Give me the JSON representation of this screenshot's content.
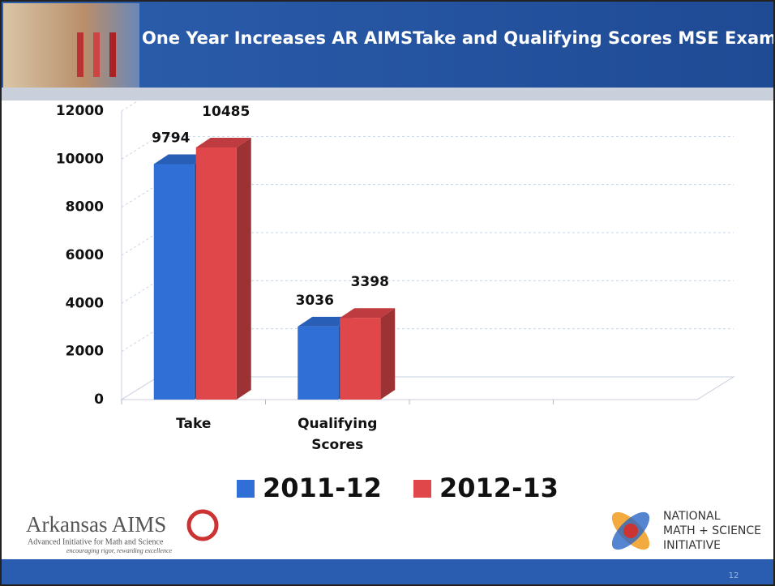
{
  "chart_data": {
    "type": "bar3d",
    "title": "One Year Increases AR AIMSTake and Qualifying Scores MSE Exams",
    "categories": [
      "Take",
      "Qualifying Scores",
      null,
      null
    ],
    "series": [
      {
        "name": "2011-12",
        "color": "#2f6fd6",
        "values": [
          9794,
          3036,
          null,
          null
        ]
      },
      {
        "name": "2012-13",
        "color": "#e0474a",
        "values": [
          10485,
          3398,
          null,
          null
        ]
      }
    ],
    "ylim": [
      0,
      12000
    ],
    "yticks": [
      0,
      2000,
      4000,
      6000,
      8000,
      10000,
      12000
    ],
    "grid": true,
    "legend": "bottom"
  },
  "footer": {
    "left_logo": {
      "name": "Arkansas AIMS",
      "subtitle": "Advanced Initiative for Math and Science",
      "tagline": "encouraging rigor, rewarding excellence"
    },
    "right_logo": [
      "NATIONAL",
      "MATH + SCIENCE",
      "INITIATIVE"
    ],
    "page_number": "12"
  }
}
